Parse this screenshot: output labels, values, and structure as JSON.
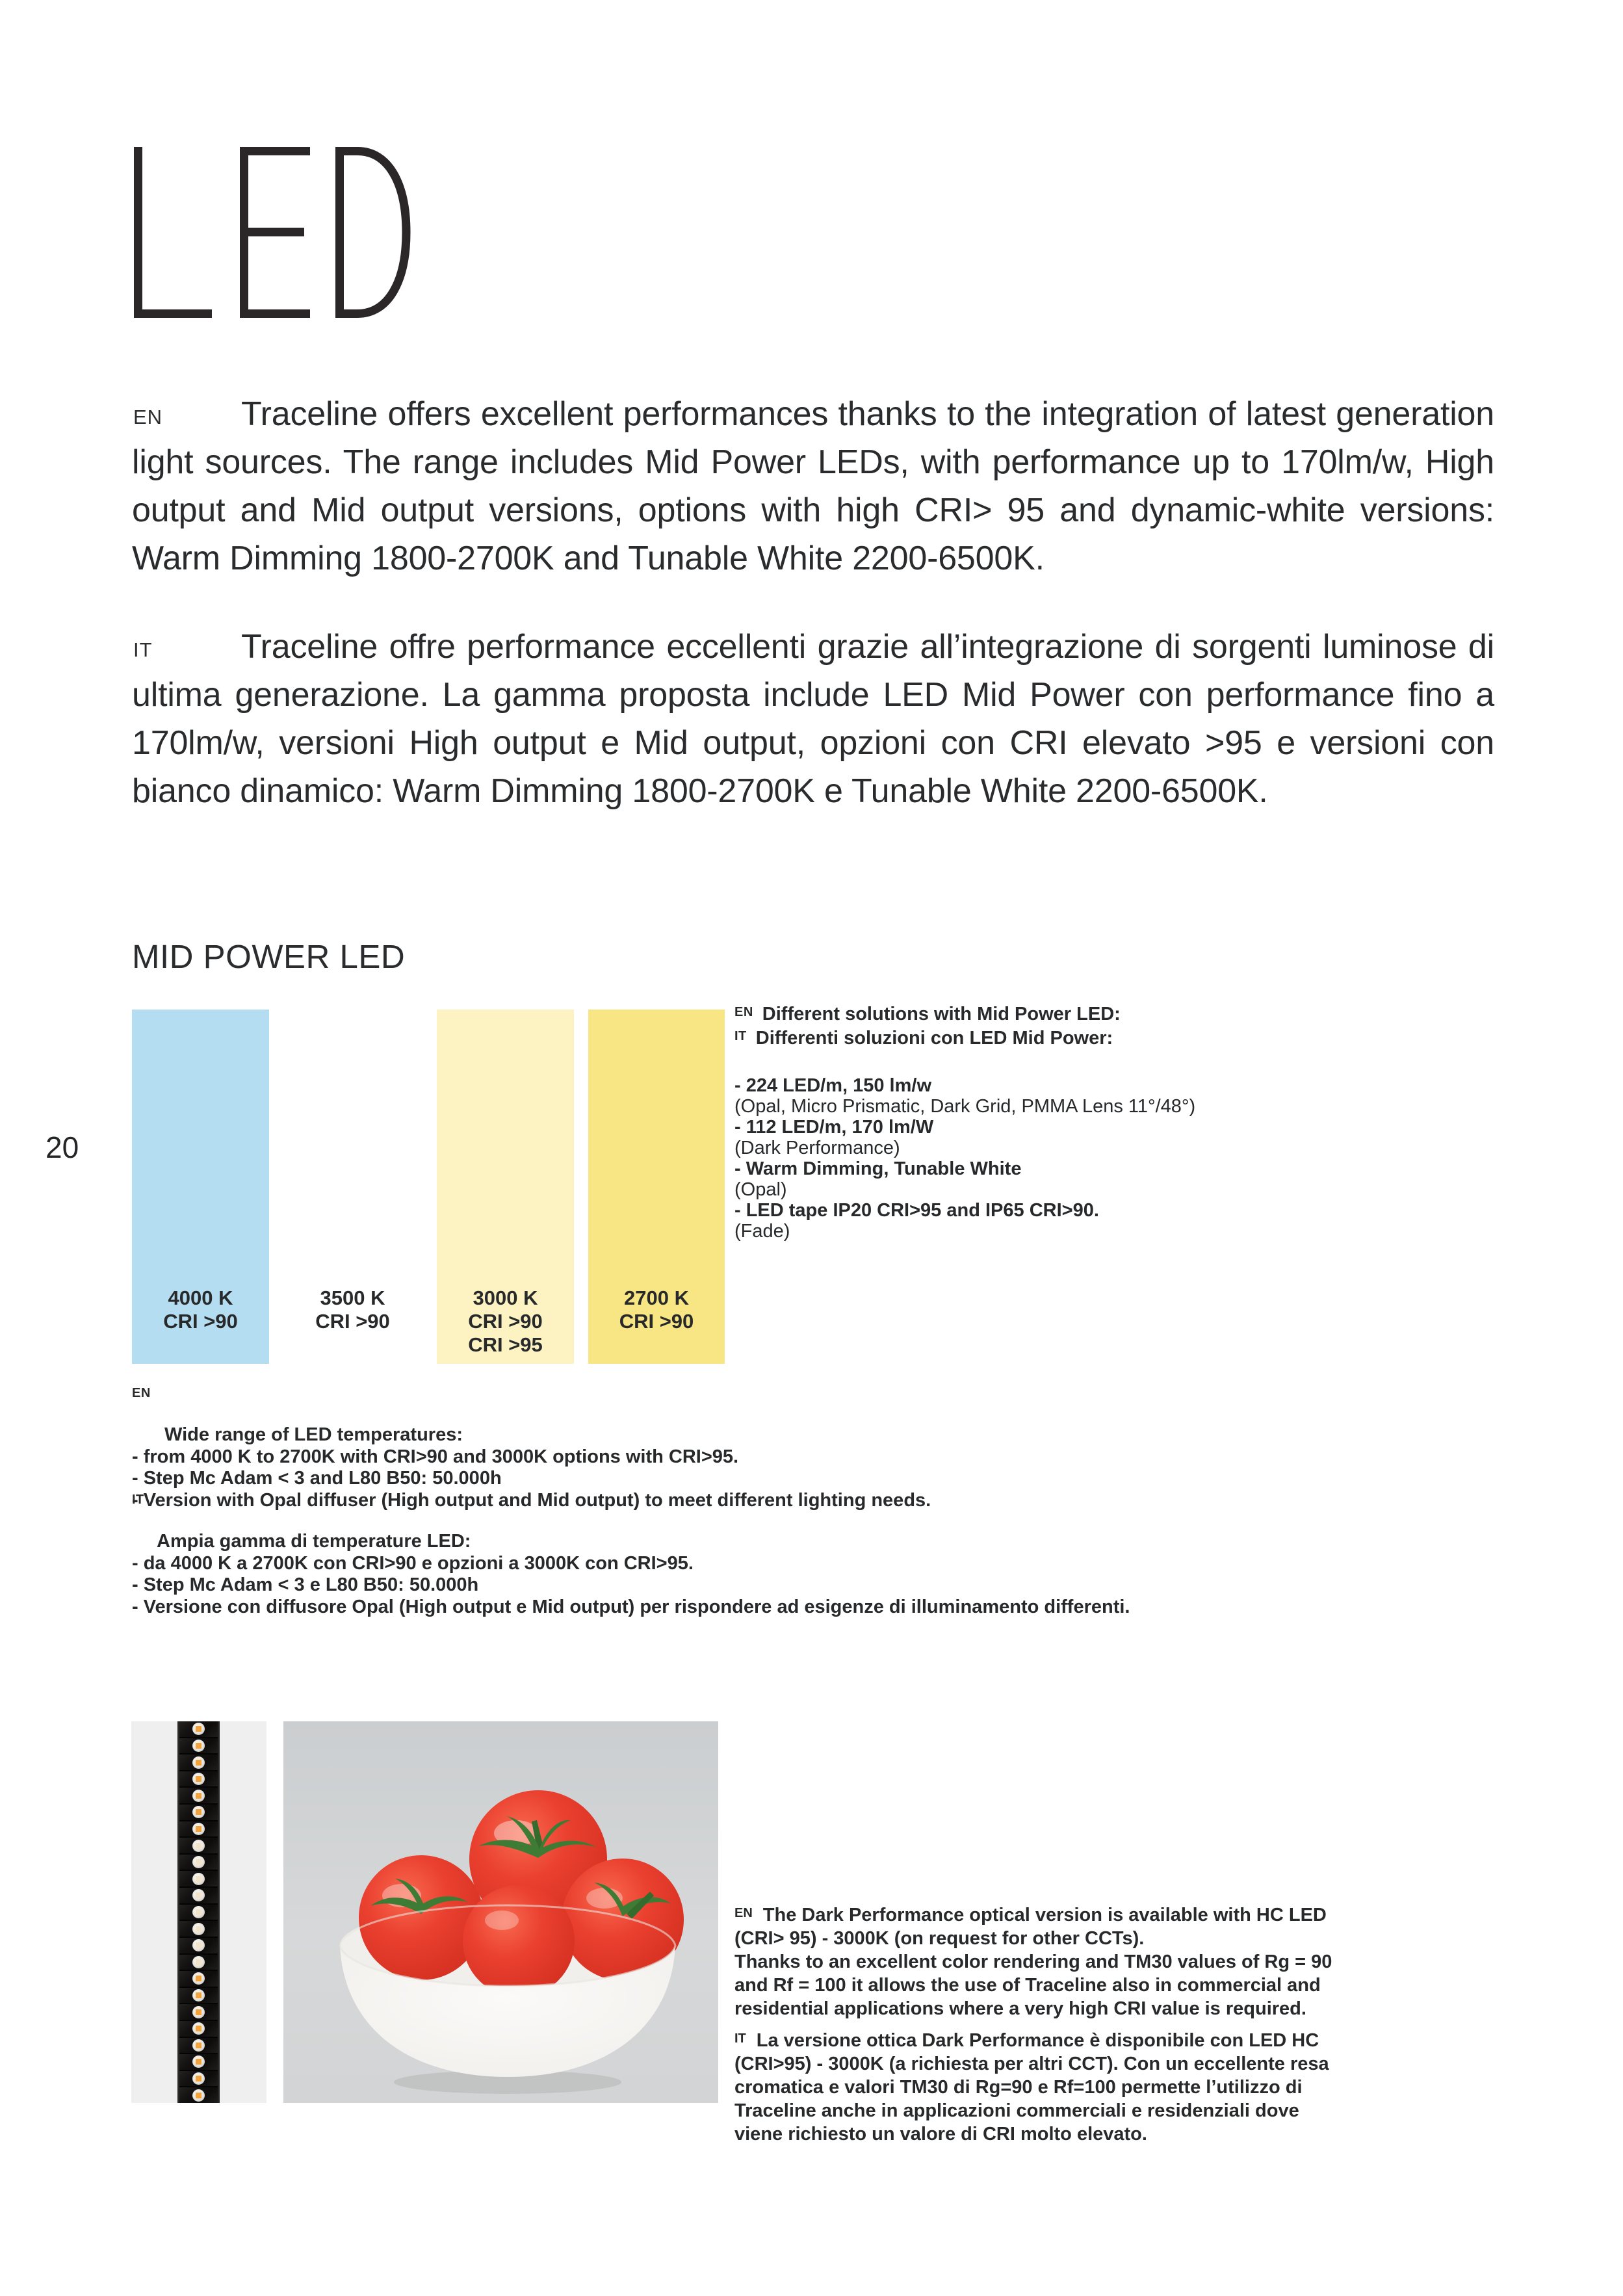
{
  "page": {
    "number": "20"
  },
  "title": "LED",
  "intro_en": {
    "label": "EN",
    "text": "Traceline offers excellent performances thanks to the integration of latest generation light sources. The range includes Mid Power LEDs, with performance up to 170lm/w, High output and Mid output versions, options with high CRI> 95 and dynamic-white versions: Warm Dimming 1800-2700K and Tunable White 2200-6500K."
  },
  "intro_it": {
    "label": "IT",
    "text": "Traceline offre performance eccellenti grazie all’integrazione di sorgenti luminose di ultima generazione. La gamma proposta include LED Mid Power con performance fino a 170lm/w, versioni High output e Mid output, opzioni con CRI elevato >95 e versioni con bianco dinamico: Warm Dimming 1800-2700K e Tunable White 2200-6500K."
  },
  "mid_power": {
    "heading": "MID POWER LED",
    "swatches": [
      {
        "label": "4000 K\nCRI >90",
        "color": "#b4ddf1"
      },
      {
        "label": "3500 K\nCRI >90",
        "color": "#ffffff"
      },
      {
        "label": "3000 K\nCRI >90\nCRI >95",
        "color": "#fdf3c2"
      },
      {
        "label": "2700 K\nCRI >90",
        "color": "#f8e583"
      }
    ],
    "solutions": {
      "en_label": "EN",
      "en_heading": "Different solutions with Mid Power LED:",
      "it_label": "IT",
      "it_heading": "Differenti soluzioni con LED Mid Power:",
      "items": [
        {
          "main": "- 224 LED/m,  150 lm/w",
          "note": "(Opal, Micro Prismatic, Dark Grid, PMMA Lens 11°/48°)"
        },
        {
          "main": "- 112 LED/m, 170 lm/W",
          "note": "(Dark Performance)"
        },
        {
          "main": "- Warm Dimming, Tunable White",
          "note": "(Opal)"
        },
        {
          "main": "- LED tape IP20 CRI>95 and IP65 CRI>90.",
          "note": "(Fade)"
        }
      ]
    },
    "temps_en": {
      "label": "EN",
      "text": "Wide range of LED temperatures:\n- from 4000 K to 2700K with CRI>90 and 3000K options with CRI>95.\n- Step Mc Adam < 3 and L80 B50: 50.000h\n- Version with Opal diffuser (High output and Mid output) to meet different lighting needs."
    },
    "temps_it": {
      "label": "IT",
      "text": "Ampia gamma di temperature LED:\n- da  4000 K a 2700K con CRI>90 e opzioni a 3000K con CRI>95.\n- Step Mc Adam < 3 e L80 B50: 50.000h\n- Versione con diffusore Opal  (High output e Mid output) per rispondere ad esigenze di illuminamento differenti."
    }
  },
  "dark_performance": {
    "en_label": "EN",
    "en_text": "The Dark Performance optical version is available with HC LED (CRI> 95) - 3000K (on request for other CCTs).\nThanks to an excellent color rendering and TM30 values of Rg = 90 and Rf = 100 it allows the use of Traceline also in commercial and residential applications where a very high CRI value is required.",
    "it_label": "IT",
    "it_text": "La versione ottica Dark Performance è disponibile con LED HC (CRI>95) - 3000K (a richiesta per altri CCT). Con un eccellente resa cromatica  e valori TM30 di Rg=90 e Rf=100 permette l’utilizzo di Traceline anche in applicazioni commerciali e residenziali dove viene richiesto un valore di CRI molto elevato."
  },
  "images": {
    "led_strip_name": "traceline-led-strip-photo",
    "tomatoes_name": "tomatoes-in-bowl-photo",
    "led_module_count": 23
  }
}
